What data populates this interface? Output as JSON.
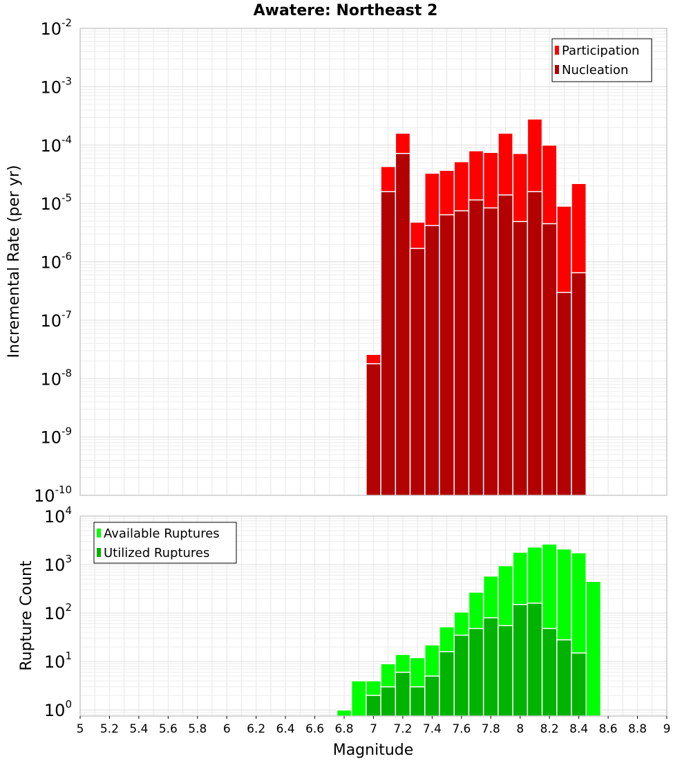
{
  "chart_data": [
    {
      "type": "bar",
      "title": "Awatere: Northeast 2",
      "xlabel": "Magnitude",
      "ylabel": "Incremental Rate (per yr)",
      "xlim": [
        5,
        9
      ],
      "ylim": [
        1e-10,
        0.01
      ],
      "yscale": "log",
      "grid": true,
      "legend_position": "top-right",
      "bar_width": 0.1,
      "x": [
        7.0,
        7.1,
        7.2,
        7.3,
        7.4,
        7.5,
        7.6,
        7.7,
        7.8,
        7.9,
        8.0,
        8.1,
        8.2,
        8.3,
        8.4
      ],
      "series": [
        {
          "name": "Participation",
          "color": "#ff0000",
          "values": [
            2.6e-08,
            4.3e-05,
            0.00016,
            4.8e-06,
            3.3e-05,
            3.7e-05,
            5.2e-05,
            8e-05,
            7.5e-05,
            0.00016,
            7.2e-05,
            0.00028,
            0.0001,
            9e-06,
            2.2e-05
          ]
        },
        {
          "name": "Nucleation",
          "color": "#b30000",
          "values": [
            1.8e-08,
            1.6e-05,
            7.2e-05,
            1.7e-06,
            4.2e-06,
            6.4e-06,
            7.5e-06,
            1.15e-05,
            8.4e-06,
            1.4e-05,
            4.9e-06,
            1.6e-05,
            4.5e-06,
            3e-07,
            6.5e-07
          ]
        }
      ]
    },
    {
      "type": "bar",
      "xlabel": "Magnitude",
      "ylabel": "Rupture Count",
      "xlim": [
        5,
        9
      ],
      "ylim": [
        0.75,
        10000
      ],
      "yscale": "log",
      "grid": true,
      "legend_position": "top-left",
      "bar_width": 0.1,
      "x_tick_labels": [
        "5",
        "5.2",
        "5.4",
        "5.6",
        "5.8",
        "6",
        "6.2",
        "6.4",
        "6.6",
        "6.8",
        "7",
        "7.2",
        "7.4",
        "7.6",
        "7.8",
        "8",
        "8.2",
        "8.4",
        "8.6",
        "8.8",
        "9"
      ],
      "x": [
        6.8,
        6.9,
        7.0,
        7.1,
        7.2,
        7.3,
        7.4,
        7.5,
        7.6,
        7.7,
        7.8,
        7.9,
        8.0,
        8.1,
        8.2,
        8.3,
        8.4,
        8.5
      ],
      "series": [
        {
          "name": "Available Ruptures",
          "color": "#00ff00",
          "values": [
            1,
            4,
            4,
            9,
            14,
            12,
            22,
            52,
            105,
            270,
            580,
            950,
            1800,
            2300,
            2650,
            2100,
            1750,
            450
          ]
        },
        {
          "name": "Utilized Ruptures",
          "color": "#00b300",
          "values": [
            null,
            null,
            2,
            3,
            6,
            3,
            5,
            16,
            35,
            48,
            80,
            55,
            150,
            160,
            48,
            28,
            15,
            null
          ]
        }
      ]
    }
  ]
}
